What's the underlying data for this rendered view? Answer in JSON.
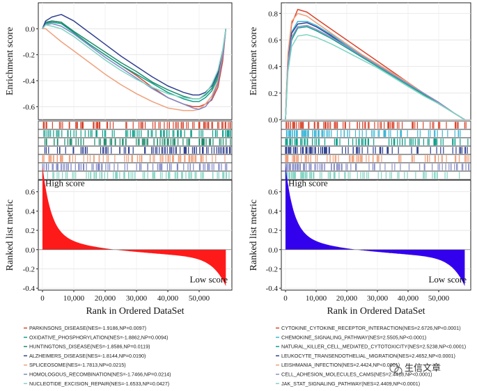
{
  "watermark": "生信文章",
  "colors": {
    "A": [
      "#d9442c",
      "#0e9f8a",
      "#1b8a6b",
      "#2f3f8f",
      "#f0a07c",
      "#7f86c7",
      "#7fd3c2"
    ],
    "B": [
      "#d9442c",
      "#3cb6d6",
      "#0e9f8a",
      "#2f3f8f",
      "#f0a07c",
      "#8a8fc8",
      "#7fd3c2"
    ],
    "metricA": "#ff1a1a",
    "metricB": "#3300ee"
  },
  "chart_data": [
    {
      "panel": "A",
      "type": "line",
      "title": "",
      "ylabel": "Enrichment score",
      "xlabel": "Rank in Ordered DataSet",
      "ylim": [
        -0.7,
        0.2
      ],
      "yticks": [
        "0.0",
        "-0.2",
        "-0.4",
        "-0.6"
      ],
      "xlim": [
        0,
        60000
      ],
      "xticks": [
        "0",
        "10,000",
        "20,000",
        "30,000",
        "40,000",
        "50,000"
      ],
      "series": [
        {
          "name": "PARKINSONS_DISEASE(NES=-1.9186,NP=0.0097)",
          "x": [
            0,
            1000,
            3000,
            6000,
            10000,
            15000,
            20000,
            25000,
            30000,
            35000,
            40000,
            45000,
            48000,
            50000,
            52000,
            54000,
            56000,
            57500,
            58500
          ],
          "y": [
            0,
            0.04,
            0.06,
            0.05,
            -0.03,
            -0.12,
            -0.2,
            -0.28,
            -0.36,
            -0.45,
            -0.53,
            -0.58,
            -0.6,
            -0.6,
            -0.58,
            -0.55,
            -0.45,
            -0.25,
            0
          ]
        },
        {
          "name": "OXIDATIVE_PHOSPHORYLATION(NES=-1.8862,NP=0.0094)",
          "x": [
            0,
            1000,
            3000,
            6000,
            10000,
            15000,
            20000,
            25000,
            30000,
            35000,
            40000,
            45000,
            48000,
            50000,
            52000,
            54000,
            56000,
            57500,
            58500
          ],
          "y": [
            0,
            0.04,
            0.05,
            0.04,
            -0.03,
            -0.12,
            -0.2,
            -0.28,
            -0.35,
            -0.42,
            -0.49,
            -0.54,
            -0.56,
            -0.56,
            -0.53,
            -0.48,
            -0.38,
            -0.2,
            0
          ]
        },
        {
          "name": "HUNTINGTONS_DISEASE(NES=-1.8586,NP=0.0119)",
          "x": [
            0,
            1000,
            3000,
            6000,
            10000,
            15000,
            20000,
            25000,
            30000,
            35000,
            40000,
            45000,
            48000,
            50000,
            52000,
            54000,
            56000,
            57500,
            58500
          ],
          "y": [
            0,
            0.05,
            0.06,
            0.05,
            -0.02,
            -0.1,
            -0.18,
            -0.26,
            -0.33,
            -0.41,
            -0.47,
            -0.52,
            -0.54,
            -0.54,
            -0.51,
            -0.46,
            -0.36,
            -0.18,
            0
          ]
        },
        {
          "name": "ALZHEIMERS_DISEASE(NES=-1.8144,NP=0.0190)",
          "x": [
            0,
            1000,
            3000,
            6000,
            10000,
            15000,
            20000,
            25000,
            30000,
            35000,
            40000,
            45000,
            48000,
            50000,
            52000,
            54000,
            56000,
            57500,
            58500
          ],
          "y": [
            0,
            0.06,
            0.09,
            0.11,
            0.06,
            -0.03,
            -0.12,
            -0.21,
            -0.29,
            -0.37,
            -0.44,
            -0.49,
            -0.51,
            -0.51,
            -0.49,
            -0.44,
            -0.34,
            -0.18,
            0
          ]
        },
        {
          "name": "SPLICEOSOME(NES=-1.7813,NP=0.0215)",
          "x": [
            0,
            1000,
            3000,
            6000,
            10000,
            15000,
            20000,
            25000,
            30000,
            35000,
            40000,
            45000,
            48000,
            50000,
            52000,
            54000,
            56000,
            57500,
            58500
          ],
          "y": [
            0,
            0.0,
            -0.04,
            -0.1,
            -0.17,
            -0.26,
            -0.35,
            -0.43,
            -0.5,
            -0.56,
            -0.61,
            -0.63,
            -0.63,
            -0.62,
            -0.58,
            -0.52,
            -0.4,
            -0.2,
            0
          ]
        },
        {
          "name": "HOMOLOGOUS_RECOMBINATION(NES=-1.7466,NP=0.0214)",
          "x": [
            0,
            1000,
            3000,
            6000,
            10000,
            15000,
            20000,
            25000,
            30000,
            35000,
            40000,
            45000,
            48000,
            50000,
            52000,
            54000,
            56000,
            57500,
            58500
          ],
          "y": [
            0,
            0.03,
            0.04,
            0.02,
            -0.04,
            -0.13,
            -0.22,
            -0.3,
            -0.38,
            -0.46,
            -0.53,
            -0.58,
            -0.61,
            -0.62,
            -0.6,
            -0.54,
            -0.42,
            -0.22,
            0
          ]
        },
        {
          "name": "NUCLEOTIDE_EXCISION_REPAIR(NES=-1.6533,NP=0.0427)",
          "x": [
            0,
            1000,
            3000,
            6000,
            10000,
            15000,
            20000,
            25000,
            30000,
            35000,
            40000,
            45000,
            48000,
            50000,
            52000,
            54000,
            56000,
            57500,
            58500
          ],
          "y": [
            0,
            0.03,
            0.02,
            0.0,
            -0.06,
            -0.15,
            -0.24,
            -0.32,
            -0.39,
            -0.45,
            -0.5,
            -0.53,
            -0.54,
            -0.54,
            -0.5,
            -0.43,
            -0.32,
            -0.16,
            0
          ]
        }
      ],
      "metric_ylabel": "Ranked list  metric",
      "metric_ylim": [
        -0.42,
        0.72
      ],
      "metric_yticks": [
        "0.6",
        "0.4",
        "0.2",
        "0.0",
        "-0.2",
        "-0.4"
      ],
      "metric_labels": {
        "high": "High score",
        "low": "Low score"
      }
    },
    {
      "panel": "B",
      "type": "line",
      "title": "",
      "ylabel": "Enrichment  score",
      "xlabel": "Rank in Ordered DataSet",
      "ylim": [
        0,
        0.88
      ],
      "yticks": [
        "0.0",
        "0.2",
        "0.4",
        "0.6",
        "0.8"
      ],
      "xlim": [
        0,
        60000
      ],
      "xticks": [
        "0",
        "10,000",
        "20,000",
        "30,000",
        "40,000",
        "50,000"
      ],
      "series": [
        {
          "name": "CYTOKINE_CYTOKINE_RECEPTOR_INTERACTION(NES=2.6726,NP<0.0001)",
          "x": [
            0,
            800,
            2000,
            4000,
            7000,
            10000,
            15000,
            20000,
            25000,
            30000,
            35000,
            40000,
            45000,
            50000,
            55000,
            58500
          ],
          "y": [
            0,
            0.48,
            0.72,
            0.83,
            0.81,
            0.76,
            0.68,
            0.6,
            0.52,
            0.44,
            0.36,
            0.28,
            0.2,
            0.12,
            0.05,
            0
          ]
        },
        {
          "name": "CHEMOKINE_SIGNALING_PATHWAY(NES=2.5505,NP<0.0001)",
          "x": [
            0,
            800,
            2000,
            4000,
            7000,
            10000,
            15000,
            20000,
            25000,
            30000,
            35000,
            40000,
            45000,
            50000,
            55000,
            58500
          ],
          "y": [
            0,
            0.45,
            0.66,
            0.74,
            0.74,
            0.71,
            0.64,
            0.56,
            0.48,
            0.41,
            0.34,
            0.27,
            0.2,
            0.13,
            0.05,
            0
          ]
        },
        {
          "name": "NATURAL_KILLER_CELL_MEDIATED_CYTOTOXICITY(NES=2.5238,NP<0.0001)",
          "x": [
            0,
            800,
            2000,
            4000,
            7000,
            10000,
            15000,
            20000,
            25000,
            30000,
            35000,
            40000,
            45000,
            50000,
            55000,
            58500
          ],
          "y": [
            0,
            0.4,
            0.6,
            0.69,
            0.7,
            0.67,
            0.61,
            0.54,
            0.47,
            0.4,
            0.33,
            0.26,
            0.19,
            0.12,
            0.05,
            0
          ]
        },
        {
          "name": "LEUKOCYTE_TRANSENDOTHELIAL_MIGRATION(NES=2.4652,NP<0.0001)",
          "x": [
            0,
            800,
            2000,
            4000,
            7000,
            10000,
            15000,
            20000,
            25000,
            30000,
            35000,
            40000,
            45000,
            50000,
            55000,
            58500
          ],
          "y": [
            0,
            0.44,
            0.65,
            0.72,
            0.73,
            0.7,
            0.63,
            0.55,
            0.48,
            0.41,
            0.34,
            0.27,
            0.2,
            0.13,
            0.05,
            0
          ]
        },
        {
          "name": "LEISHMANIA_INFECTION(NES=2.4424,NP<0.0001)",
          "x": [
            0,
            800,
            2000,
            4000,
            7000,
            10000,
            15000,
            20000,
            25000,
            30000,
            35000,
            40000,
            45000,
            50000,
            55000,
            58500
          ],
          "y": [
            0,
            0.5,
            0.74,
            0.8,
            0.78,
            0.73,
            0.65,
            0.57,
            0.49,
            0.42,
            0.35,
            0.28,
            0.2,
            0.13,
            0.05,
            0
          ]
        },
        {
          "name": "CELL_ADHESION_MOLECULES_CAMS(NES=2.4418,NP<0.0001)",
          "x": [
            0,
            800,
            2000,
            4000,
            7000,
            10000,
            15000,
            20000,
            25000,
            30000,
            35000,
            40000,
            45000,
            50000,
            55000,
            58500
          ],
          "y": [
            0,
            0.42,
            0.62,
            0.7,
            0.71,
            0.68,
            0.62,
            0.55,
            0.48,
            0.41,
            0.34,
            0.27,
            0.2,
            0.13,
            0.05,
            0
          ]
        },
        {
          "name": "JAK_STAT_SIGNALING_PATHWAY(NES=2.4409,NP<0.0001)",
          "x": [
            0,
            800,
            2000,
            4000,
            7000,
            10000,
            15000,
            20000,
            25000,
            30000,
            35000,
            40000,
            45000,
            50000,
            55000,
            58500
          ],
          "y": [
            0,
            0.36,
            0.55,
            0.63,
            0.64,
            0.62,
            0.57,
            0.51,
            0.45,
            0.39,
            0.32,
            0.25,
            0.18,
            0.12,
            0.05,
            0
          ]
        }
      ],
      "metric_ylabel": "Ranked list  metric",
      "metric_ylim": [
        -0.42,
        0.72
      ],
      "metric_yticks": [
        "0.6",
        "0.4",
        "0.2",
        "0.0",
        "-0.2",
        "-0.4"
      ],
      "metric_labels": {
        "high": "High score",
        "low": "Low score"
      }
    }
  ]
}
